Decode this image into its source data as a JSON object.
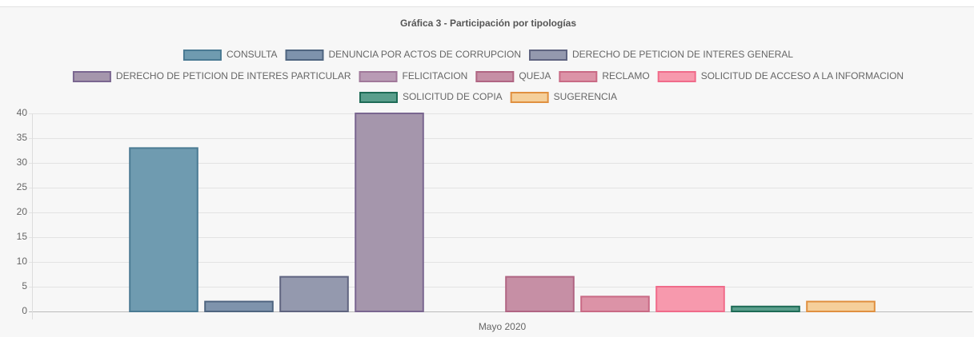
{
  "chart_data": {
    "type": "bar",
    "title": "Gráfica 3 - Participación por tipologías",
    "categories": [
      "Mayo 2020"
    ],
    "series": [
      {
        "name": "CONSULTA",
        "color": "#6f9bb0",
        "border": "#4a7a93",
        "values": [
          33
        ]
      },
      {
        "name": "DENUNCIA POR ACTOS DE CORRUPCION",
        "color": "#7e93ac",
        "border": "#4f6580",
        "values": [
          2
        ]
      },
      {
        "name": "DERECHO DE PETICION DE INTERES GENERAL",
        "color": "#9499ae",
        "border": "#5f6480",
        "values": [
          7
        ]
      },
      {
        "name": "DERECHO DE PETICION DE INTERES PARTICULAR",
        "color": "#a596ac",
        "border": "#7a6690",
        "values": [
          40
        ]
      },
      {
        "name": "FELICITACION",
        "color": "#b99bb5",
        "border": "#a0789a",
        "values": [
          0
        ]
      },
      {
        "name": "QUEJA",
        "color": "#c68fa5",
        "border": "#b06583",
        "values": [
          7
        ]
      },
      {
        "name": "RECLAMO",
        "color": "#dc93a7",
        "border": "#c96a85",
        "values": [
          3
        ]
      },
      {
        "name": "SOLICITUD DE ACCESO A LA INFORMACION",
        "color": "#f799ad",
        "border": "#f06b8a",
        "values": [
          5
        ]
      },
      {
        "name": "SOLICITUD DE COPIA",
        "color": "#5a9e8c",
        "border": "#1e6b56",
        "values": [
          1
        ]
      },
      {
        "name": "SUGERENCIA",
        "color": "#f5cf9a",
        "border": "#e09040",
        "values": [
          2
        ]
      }
    ],
    "ylim": [
      0,
      40
    ],
    "yticks": [
      0,
      5,
      10,
      15,
      20,
      25,
      30,
      35,
      40
    ],
    "grid": true
  }
}
